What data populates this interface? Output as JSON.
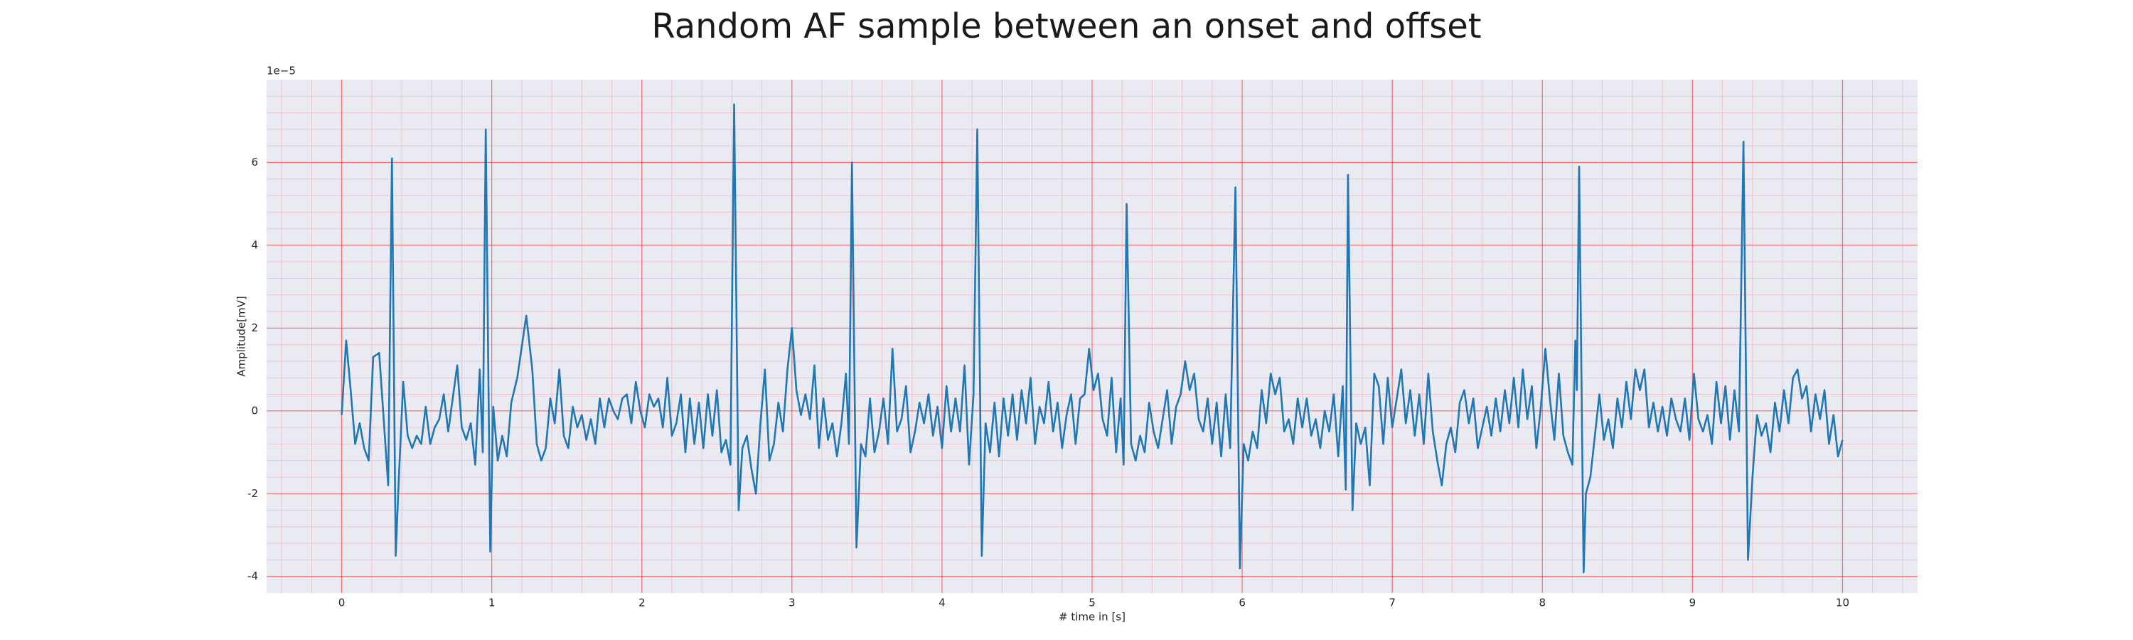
{
  "chart_data": {
    "type": "line",
    "title": "Random AF sample between an onset and offset",
    "x_label": "# time in [s]",
    "y_label": "Amplitude[mV]",
    "y_offset_label": "1e−5",
    "color": "#1f77b4",
    "grid": true,
    "xlim": [
      -0.5,
      10.5
    ],
    "ylim": [
      -4.4,
      8.0
    ],
    "xticks": [
      0,
      1,
      2,
      3,
      4,
      5,
      6,
      7,
      8,
      9,
      10
    ],
    "yticks": [
      -4,
      -2,
      0,
      2,
      4,
      6
    ],
    "xminorticks": [
      -0.4,
      -0.2,
      0.2,
      0.4,
      0.6,
      0.8,
      1.2,
      1.4,
      1.6,
      1.8,
      2.2,
      2.4,
      2.6,
      2.8,
      3.2,
      3.4,
      3.6,
      3.8,
      4.2,
      4.4,
      4.6,
      4.8,
      5.2,
      5.4,
      5.6,
      5.8,
      6.2,
      6.4,
      6.6,
      6.8,
      7.2,
      7.4,
      7.6,
      7.8,
      8.2,
      8.4,
      8.6,
      8.8,
      9.2,
      9.4,
      9.6,
      9.8,
      10.2,
      10.4
    ],
    "yminorticks": [
      -3.6,
      -3.2,
      -2.8,
      -2.4,
      -1.6,
      -1.2,
      -0.8,
      -0.4,
      0.4,
      0.8,
      1.2,
      1.6,
      2.4,
      2.8,
      3.2,
      3.6,
      4.4,
      4.8,
      5.2,
      5.6,
      6.4,
      6.8,
      7.2,
      7.6
    ],
    "x": [
      0,
      0.03,
      0.06,
      0.09,
      0.12,
      0.15,
      0.18,
      0.21,
      0.25,
      0.28,
      0.31,
      0.335,
      0.36,
      0.38,
      0.41,
      0.44,
      0.47,
      0.5,
      0.53,
      0.56,
      0.59,
      0.62,
      0.65,
      0.68,
      0.71,
      0.74,
      0.77,
      0.8,
      0.83,
      0.86,
      0.89,
      0.92,
      0.94,
      0.96,
      0.99,
      1.01,
      1.04,
      1.07,
      1.1,
      1.13,
      1.17,
      1.23,
      1.27,
      1.3,
      1.33,
      1.36,
      1.39,
      1.42,
      1.45,
      1.48,
      1.51,
      1.54,
      1.57,
      1.6,
      1.63,
      1.66,
      1.69,
      1.72,
      1.75,
      1.78,
      1.81,
      1.84,
      1.87,
      1.9,
      1.93,
      1.96,
      1.99,
      2.02,
      2.05,
      2.08,
      2.11,
      2.14,
      2.17,
      2.2,
      2.23,
      2.26,
      2.29,
      2.32,
      2.35,
      2.38,
      2.41,
      2.44,
      2.47,
      2.5,
      2.53,
      2.56,
      2.59,
      2.615,
      2.645,
      2.67,
      2.7,
      2.73,
      2.76,
      2.79,
      2.82,
      2.85,
      2.88,
      2.91,
      2.94,
      2.97,
      3.0,
      3.03,
      3.06,
      3.09,
      3.12,
      3.15,
      3.18,
      3.21,
      3.24,
      3.27,
      3.3,
      3.33,
      3.36,
      3.38,
      3.4,
      3.43,
      3.46,
      3.49,
      3.52,
      3.55,
      3.58,
      3.61,
      3.64,
      3.67,
      3.7,
      3.73,
      3.76,
      3.79,
      3.82,
      3.85,
      3.88,
      3.91,
      3.94,
      3.97,
      4.0,
      4.03,
      4.06,
      4.09,
      4.12,
      4.15,
      4.18,
      4.21,
      4.235,
      4.265,
      4.29,
      4.32,
      4.35,
      4.38,
      4.41,
      4.44,
      4.47,
      4.5,
      4.53,
      4.56,
      4.59,
      4.62,
      4.65,
      4.68,
      4.71,
      4.74,
      4.77,
      4.8,
      4.83,
      4.86,
      4.89,
      4.92,
      4.95,
      4.98,
      5.01,
      5.04,
      5.07,
      5.1,
      5.13,
      5.16,
      5.19,
      5.21,
      5.23,
      5.26,
      5.29,
      5.32,
      5.35,
      5.38,
      5.41,
      5.44,
      5.47,
      5.5,
      5.53,
      5.56,
      5.59,
      5.62,
      5.65,
      5.68,
      5.71,
      5.74,
      5.77,
      5.8,
      5.83,
      5.86,
      5.89,
      5.92,
      5.955,
      5.985,
      6.01,
      6.04,
      6.07,
      6.1,
      6.13,
      6.16,
      6.19,
      6.22,
      6.25,
      6.28,
      6.31,
      6.34,
      6.37,
      6.4,
      6.43,
      6.46,
      6.49,
      6.52,
      6.55,
      6.58,
      6.61,
      6.64,
      6.67,
      6.69,
      6.705,
      6.735,
      6.76,
      6.79,
      6.82,
      6.85,
      6.88,
      6.91,
      6.94,
      6.97,
      7.0,
      7.03,
      7.06,
      7.09,
      7.12,
      7.15,
      7.18,
      7.21,
      7.24,
      7.27,
      7.3,
      7.33,
      7.36,
      7.39,
      7.42,
      7.45,
      7.48,
      7.51,
      7.54,
      7.57,
      7.6,
      7.63,
      7.66,
      7.69,
      7.72,
      7.75,
      7.78,
      7.81,
      7.84,
      7.87,
      7.9,
      7.93,
      7.96,
      7.99,
      8.02,
      8.05,
      8.08,
      8.11,
      8.14,
      8.17,
      8.2,
      8.22,
      8.23,
      8.245,
      8.275,
      8.29,
      8.32,
      8.35,
      8.38,
      8.41,
      8.44,
      8.47,
      8.5,
      8.53,
      8.56,
      8.59,
      8.62,
      8.65,
      8.68,
      8.71,
      8.74,
      8.77,
      8.8,
      8.83,
      8.86,
      8.89,
      8.92,
      8.95,
      8.98,
      9.01,
      9.04,
      9.07,
      9.1,
      9.13,
      9.16,
      9.19,
      9.22,
      9.25,
      9.28,
      9.31,
      9.34,
      9.37,
      9.4,
      9.43,
      9.46,
      9.49,
      9.52,
      9.55,
      9.58,
      9.61,
      9.64,
      9.67,
      9.7,
      9.73,
      9.76,
      9.79,
      9.82,
      9.85,
      9.88,
      9.91,
      9.94,
      9.97,
      10.0
    ],
    "values": [
      -0.1,
      1.7,
      0.5,
      -0.8,
      -0.3,
      -0.9,
      -1.2,
      1.3,
      1.4,
      -0.2,
      -1.8,
      6.1,
      -3.5,
      -1.7,
      0.7,
      -0.6,
      -0.9,
      -0.6,
      -0.8,
      0.1,
      -0.8,
      -0.4,
      -0.2,
      0.4,
      -0.5,
      0.3,
      1.1,
      -0.4,
      -0.7,
      -0.3,
      -1.3,
      1.0,
      -1.0,
      6.8,
      -3.4,
      0.1,
      -1.2,
      -0.6,
      -1.1,
      0.2,
      0.8,
      2.3,
      1.0,
      -0.8,
      -1.2,
      -0.9,
      0.3,
      -0.3,
      1.0,
      -0.6,
      -0.9,
      0.1,
      -0.4,
      -0.1,
      -0.7,
      -0.2,
      -0.8,
      0.3,
      -0.4,
      0.3,
      0.0,
      -0.2,
      0.3,
      0.4,
      -0.3,
      0.7,
      0.0,
      -0.4,
      0.4,
      0.1,
      0.3,
      -0.4,
      0.8,
      -0.6,
      -0.3,
      0.4,
      -1.0,
      0.3,
      -0.8,
      0.2,
      -0.9,
      0.4,
      -0.6,
      0.5,
      -1.0,
      -0.7,
      -1.3,
      7.4,
      -2.4,
      -0.9,
      -0.6,
      -1.4,
      -2.0,
      -0.3,
      1.0,
      -1.2,
      -0.8,
      0.2,
      -0.5,
      1.0,
      2.0,
      0.5,
      -0.1,
      0.4,
      -0.2,
      1.1,
      -0.9,
      0.3,
      -0.7,
      -0.3,
      -1.1,
      -0.3,
      0.9,
      -0.8,
      6.0,
      -3.3,
      -0.8,
      -1.1,
      0.3,
      -1.0,
      -0.5,
      0.3,
      -0.8,
      1.5,
      -0.5,
      -0.2,
      0.6,
      -1.0,
      -0.5,
      0.2,
      -0.3,
      0.4,
      -0.6,
      0.1,
      -0.9,
      0.6,
      -0.5,
      0.3,
      -0.5,
      1.1,
      -1.3,
      0.4,
      6.8,
      -3.5,
      -0.3,
      -1.0,
      0.2,
      -1.1,
      0.3,
      -0.6,
      0.4,
      -0.7,
      0.5,
      -0.3,
      0.8,
      -0.8,
      0.1,
      -0.3,
      0.7,
      -0.5,
      0.2,
      -0.9,
      -0.1,
      0.4,
      -0.8,
      0.3,
      0.4,
      1.5,
      0.5,
      0.9,
      -0.2,
      -0.6,
      0.8,
      -1.0,
      0.3,
      -1.3,
      5.0,
      -0.8,
      -1.2,
      -0.6,
      -1.0,
      0.2,
      -0.5,
      -0.9,
      -0.2,
      0.5,
      -0.8,
      0.1,
      0.4,
      1.2,
      0.5,
      0.9,
      -0.2,
      -0.5,
      0.3,
      -0.8,
      0.2,
      -1.1,
      0.4,
      -0.9,
      5.4,
      -3.8,
      -0.8,
      -1.2,
      -0.5,
      -0.9,
      0.5,
      -0.3,
      0.9,
      0.4,
      0.8,
      -0.5,
      -0.2,
      -0.8,
      0.3,
      -0.4,
      0.3,
      -0.6,
      -0.2,
      -0.9,
      0.0,
      -0.5,
      0.4,
      -1.1,
      0.6,
      -1.9,
      5.7,
      -2.4,
      -0.3,
      -0.8,
      -0.4,
      -1.8,
      0.9,
      0.6,
      -0.8,
      0.8,
      -0.4,
      0.3,
      1.0,
      -0.3,
      0.5,
      -0.6,
      0.4,
      -0.8,
      0.9,
      -0.5,
      -1.2,
      -1.8,
      -0.8,
      -0.4,
      -1.0,
      0.2,
      0.5,
      -0.3,
      0.3,
      -0.9,
      -0.4,
      0.1,
      -0.6,
      0.3,
      -0.5,
      0.5,
      -0.3,
      0.8,
      -0.4,
      1.0,
      -0.2,
      0.6,
      -0.9,
      0.1,
      1.5,
      0.3,
      -0.7,
      0.9,
      -0.6,
      -1.0,
      -1.3,
      1.7,
      0.5,
      5.9,
      -3.9,
      -2.0,
      -1.6,
      -0.6,
      0.4,
      -0.7,
      -0.2,
      -0.9,
      0.3,
      -0.4,
      0.7,
      -0.2,
      1.0,
      0.5,
      1.0,
      -0.4,
      0.2,
      -0.5,
      0.1,
      -0.6,
      0.3,
      -0.2,
      -0.5,
      0.3,
      -0.7,
      0.9,
      -0.2,
      -0.5,
      -0.1,
      -0.8,
      0.7,
      -0.3,
      0.6,
      -0.7,
      0.5,
      -0.5,
      6.5,
      -3.6,
      -1.6,
      -0.1,
      -0.6,
      -0.3,
      -1.0,
      0.2,
      -0.5,
      0.5,
      -0.3,
      0.8,
      1.0,
      0.3,
      0.6,
      -0.5,
      0.4,
      -0.2,
      0.5,
      -0.8,
      -0.1,
      -1.1,
      -0.7
    ]
  }
}
